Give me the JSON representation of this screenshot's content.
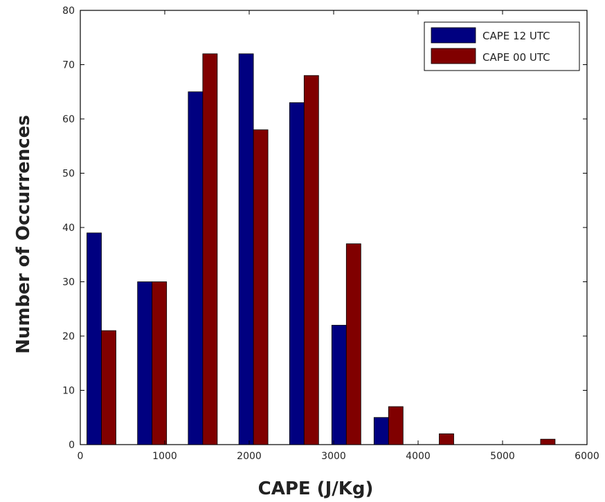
{
  "chart_data": {
    "type": "bar",
    "title": "",
    "xlabel": "CAPE (J/Kg)",
    "ylabel": "Number of Occurrences",
    "x": [
      250,
      850,
      1450,
      2050,
      2650,
      3150,
      3650,
      4250,
      5450
    ],
    "series": [
      {
        "name": "CAPE 12 UTC",
        "color": "#000080",
        "values": [
          39,
          30,
          65,
          72,
          63,
          22,
          5,
          0,
          0
        ]
      },
      {
        "name": "CAPE 00 UTC",
        "color": "#800000",
        "values": [
          21,
          30,
          72,
          58,
          68,
          37,
          7,
          2,
          1
        ]
      }
    ],
    "xlim": [
      0,
      6000
    ],
    "ylim": [
      0,
      80
    ],
    "xticks": [
      0,
      1000,
      2000,
      3000,
      4000,
      5000,
      6000
    ],
    "yticks": [
      0,
      10,
      20,
      30,
      40,
      50,
      60,
      70,
      80
    ],
    "grid": false,
    "legend_position": "top-right"
  }
}
